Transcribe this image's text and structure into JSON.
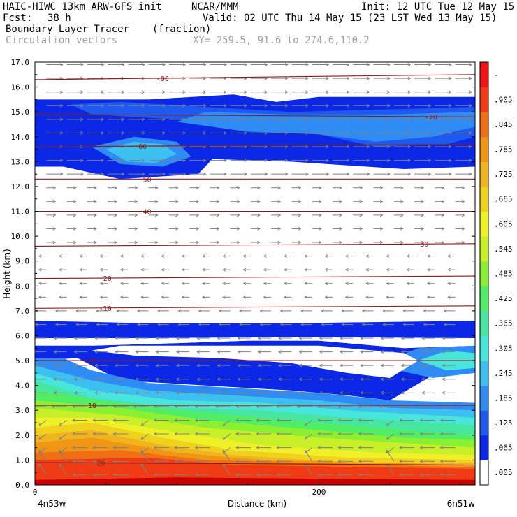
{
  "header": {
    "model": "HAIC-HIWC 13km ARW-GFS init",
    "org": "NCAR/MMM",
    "init": "Init: 12 UTC Tue 12 May 15",
    "fcst_label": "Fcst:",
    "fcst_value": "38 h",
    "valid": "Valid: 02 UTC Thu 14 May 15 (23 LST Wed 13 May 15)",
    "field_name": "Boundary Layer Tracer",
    "field_units": "(fraction)",
    "vector_label": "Circulation vectors",
    "xy_label": "XY= 259.5, 91.6 to 274.6,110.2"
  },
  "chart_data": {
    "type": "heatmap",
    "xlabel": "Distance (km)",
    "ylabel": "Height (km)",
    "xlim": [
      0,
      310
    ],
    "ylim": [
      0.0,
      17.0
    ],
    "x_ticks": [
      0,
      200
    ],
    "x_end_labels": [
      "4n53w",
      "6n51w"
    ],
    "y_ticks": [
      "0.0",
      "1.0",
      "2.0",
      "3.0",
      "4.0",
      "5.0",
      "6.0",
      "7.0",
      "8.0",
      "9.0",
      "10.0",
      "11.0",
      "12.0",
      "13.0",
      "14.0",
      "15.0",
      "16.0",
      "17.0"
    ],
    "colorbar": {
      "labels": [
        ".005",
        ".065",
        ".125",
        ".185",
        ".245",
        ".305",
        ".365",
        ".425",
        ".485",
        ".545",
        ".605",
        ".665",
        ".725",
        ".785",
        ".845",
        ".905",
        "-"
      ],
      "colors": [
        "#ffffff",
        "#0a28e6",
        "#1e5af0",
        "#2f8cf4",
        "#3cc0f0",
        "#46e6dc",
        "#46e6a0",
        "#50ee64",
        "#8cf032",
        "#c8f028",
        "#f0f028",
        "#f0d21e",
        "#f0b41e",
        "#f09614",
        "#f06e14",
        "#f03c14",
        "#f01414"
      ]
    },
    "temperature_contours": [
      {
        "label": "-80",
        "heights": [
          16.3,
          16.5
        ]
      },
      {
        "label": "-70",
        "heights": [
          14.9,
          14.8
        ]
      },
      {
        "label": "-60",
        "heights": [
          13.6,
          13.7
        ]
      },
      {
        "label": "-50",
        "heights": [
          12.3,
          12.3
        ]
      },
      {
        "label": "-40",
        "heights": [
          11.0,
          11.0
        ]
      },
      {
        "label": "-30",
        "heights": [
          9.6,
          9.7
        ]
      },
      {
        "label": "-20",
        "heights": [
          8.3,
          8.4
        ]
      },
      {
        "label": "-10",
        "heights": [
          7.1,
          7.2
        ]
      },
      {
        "label": "0",
        "heights": [
          5.0,
          5.0
        ]
      },
      {
        "label": "10",
        "heights": [
          3.2,
          3.2
        ]
      },
      {
        "label": "20",
        "heights": [
          0.9,
          0.8
        ]
      }
    ],
    "contour_color": "#8b1a1a",
    "vector_color": "#808080"
  }
}
